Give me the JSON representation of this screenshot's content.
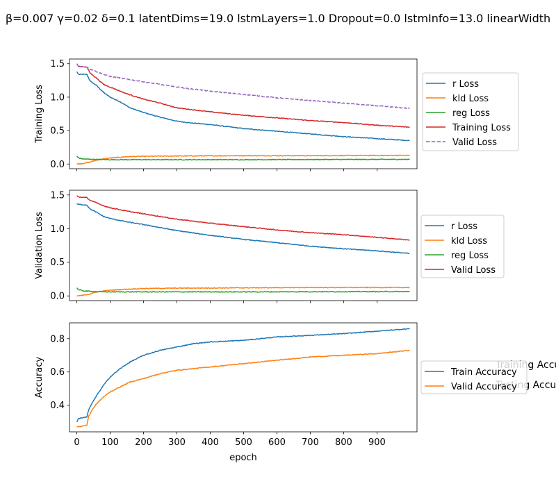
{
  "figure": {
    "title": "β=0.007 γ=0.02 δ=0.1 latentDims=19.0 lstmLayers=1.0 Dropout=0.0 lstmInfo=13.0 linearWidth",
    "xlabel": "epoch",
    "x_ticks": [
      0,
      100,
      200,
      300,
      400,
      500,
      600,
      700,
      800,
      900
    ],
    "stray_text": [
      "Training Accu",
      "Testing Accu"
    ]
  },
  "colors": {
    "blue": "#1f77b4",
    "orange": "#ff7f0e",
    "green": "#2ca02c",
    "red": "#d62728",
    "purple": "#9467bd"
  },
  "chart_data": [
    {
      "type": "line",
      "ylabel": "Training Loss",
      "xlim": [
        -22,
        1020
      ],
      "ylim": [
        -0.07,
        1.57
      ],
      "y_ticks": [
        0.0,
        0.5,
        1.0,
        1.5
      ],
      "y_tick_labels": [
        "0.0",
        "0.5",
        "1.0",
        "1.5"
      ],
      "legend_position": "right",
      "series": [
        {
          "name": "r Loss",
          "color": "blue",
          "style": "solid",
          "x": [
            0,
            5,
            30,
            40,
            60,
            80,
            100,
            130,
            160,
            200,
            250,
            300,
            350,
            400,
            450,
            500,
            600,
            700,
            800,
            900,
            999
          ],
          "y": [
            1.38,
            1.34,
            1.34,
            1.24,
            1.17,
            1.07,
            1.0,
            0.93,
            0.84,
            0.77,
            0.7,
            0.64,
            0.61,
            0.59,
            0.56,
            0.53,
            0.49,
            0.45,
            0.41,
            0.38,
            0.35
          ]
        },
        {
          "name": "kld Loss",
          "color": "orange",
          "style": "solid",
          "x": [
            0,
            20,
            40,
            60,
            100,
            150,
            200,
            300,
            500,
            700,
            999
          ],
          "y": [
            0.0,
            0.01,
            0.03,
            0.06,
            0.09,
            0.11,
            0.115,
            0.12,
            0.125,
            0.125,
            0.13
          ]
        },
        {
          "name": "reg Loss",
          "color": "green",
          "style": "solid",
          "x": [
            0,
            5,
            20,
            50,
            100,
            200,
            500,
            999
          ],
          "y": [
            0.12,
            0.09,
            0.075,
            0.07,
            0.065,
            0.065,
            0.065,
            0.07
          ]
        },
        {
          "name": "Training Loss",
          "color": "red",
          "style": "solid",
          "x": [
            0,
            5,
            30,
            40,
            60,
            80,
            100,
            150,
            200,
            250,
            300,
            400,
            500,
            600,
            700,
            800,
            900,
            999
          ],
          "y": [
            1.5,
            1.46,
            1.45,
            1.36,
            1.28,
            1.19,
            1.15,
            1.05,
            0.97,
            0.91,
            0.84,
            0.78,
            0.73,
            0.69,
            0.65,
            0.62,
            0.58,
            0.55
          ]
        },
        {
          "name": "Valid Loss",
          "color": "purple",
          "style": "dashed",
          "x": [
            0,
            5,
            30,
            40,
            60,
            80,
            100,
            150,
            200,
            300,
            400,
            500,
            600,
            700,
            800,
            900,
            999
          ],
          "y": [
            1.5,
            1.46,
            1.45,
            1.42,
            1.38,
            1.34,
            1.31,
            1.27,
            1.23,
            1.15,
            1.09,
            1.04,
            0.99,
            0.95,
            0.91,
            0.87,
            0.83
          ]
        }
      ]
    },
    {
      "type": "line",
      "ylabel": "Validation Loss",
      "xlim": [
        -22,
        1020
      ],
      "ylim": [
        -0.07,
        1.57
      ],
      "y_ticks": [
        0.0,
        0.5,
        1.0,
        1.5
      ],
      "y_tick_labels": [
        "0.0",
        "0.5",
        "1.0",
        "1.5"
      ],
      "legend_position": "right",
      "series": [
        {
          "name": "r Loss",
          "color": "blue",
          "style": "solid",
          "x": [
            0,
            5,
            30,
            40,
            60,
            80,
            100,
            150,
            200,
            300,
            400,
            500,
            600,
            700,
            800,
            900,
            999
          ],
          "y": [
            1.37,
            1.36,
            1.35,
            1.29,
            1.24,
            1.18,
            1.15,
            1.1,
            1.06,
            0.97,
            0.9,
            0.84,
            0.79,
            0.74,
            0.7,
            0.67,
            0.63
          ]
        },
        {
          "name": "kld Loss",
          "color": "orange",
          "style": "solid",
          "x": [
            0,
            20,
            40,
            60,
            100,
            150,
            200,
            300,
            500,
            700,
            999
          ],
          "y": [
            0.0,
            0.01,
            0.03,
            0.06,
            0.085,
            0.1,
            0.11,
            0.115,
            0.12,
            0.125,
            0.125
          ]
        },
        {
          "name": "reg Loss",
          "color": "green",
          "style": "solid",
          "x": [
            0,
            5,
            20,
            50,
            100,
            200,
            500,
            999
          ],
          "y": [
            0.12,
            0.09,
            0.075,
            0.065,
            0.06,
            0.06,
            0.06,
            0.065
          ]
        },
        {
          "name": "Valid Loss",
          "color": "red",
          "style": "solid",
          "x": [
            0,
            5,
            30,
            40,
            60,
            80,
            100,
            150,
            200,
            300,
            400,
            500,
            600,
            700,
            800,
            900,
            999
          ],
          "y": [
            1.49,
            1.47,
            1.46,
            1.42,
            1.38,
            1.34,
            1.31,
            1.26,
            1.22,
            1.14,
            1.08,
            1.03,
            0.98,
            0.94,
            0.91,
            0.87,
            0.83
          ]
        }
      ]
    },
    {
      "type": "line",
      "ylabel": "Accuracy",
      "xlim": [
        -22,
        1020
      ],
      "ylim": [
        0.24,
        0.895
      ],
      "y_ticks": [
        0.4,
        0.6,
        0.8
      ],
      "y_tick_labels": [
        "0.4",
        "0.6",
        "0.8"
      ],
      "legend_position": "right",
      "series": [
        {
          "name": "Train Accuracy",
          "color": "blue",
          "style": "solid",
          "x": [
            0,
            5,
            30,
            35,
            45,
            60,
            80,
            100,
            130,
            160,
            200,
            250,
            300,
            350,
            400,
            500,
            600,
            700,
            800,
            900,
            999
          ],
          "y": [
            0.3,
            0.32,
            0.33,
            0.37,
            0.41,
            0.46,
            0.52,
            0.57,
            0.62,
            0.66,
            0.7,
            0.73,
            0.75,
            0.77,
            0.78,
            0.79,
            0.81,
            0.82,
            0.83,
            0.845,
            0.86
          ]
        },
        {
          "name": "Valid Accuracy",
          "color": "orange",
          "style": "solid",
          "x": [
            0,
            5,
            30,
            35,
            45,
            60,
            80,
            100,
            130,
            160,
            200,
            250,
            300,
            350,
            400,
            500,
            600,
            700,
            800,
            900,
            999
          ],
          "y": [
            0.27,
            0.27,
            0.28,
            0.33,
            0.37,
            0.41,
            0.45,
            0.48,
            0.51,
            0.54,
            0.56,
            0.59,
            0.61,
            0.62,
            0.63,
            0.65,
            0.67,
            0.69,
            0.7,
            0.71,
            0.73
          ]
        }
      ]
    }
  ]
}
